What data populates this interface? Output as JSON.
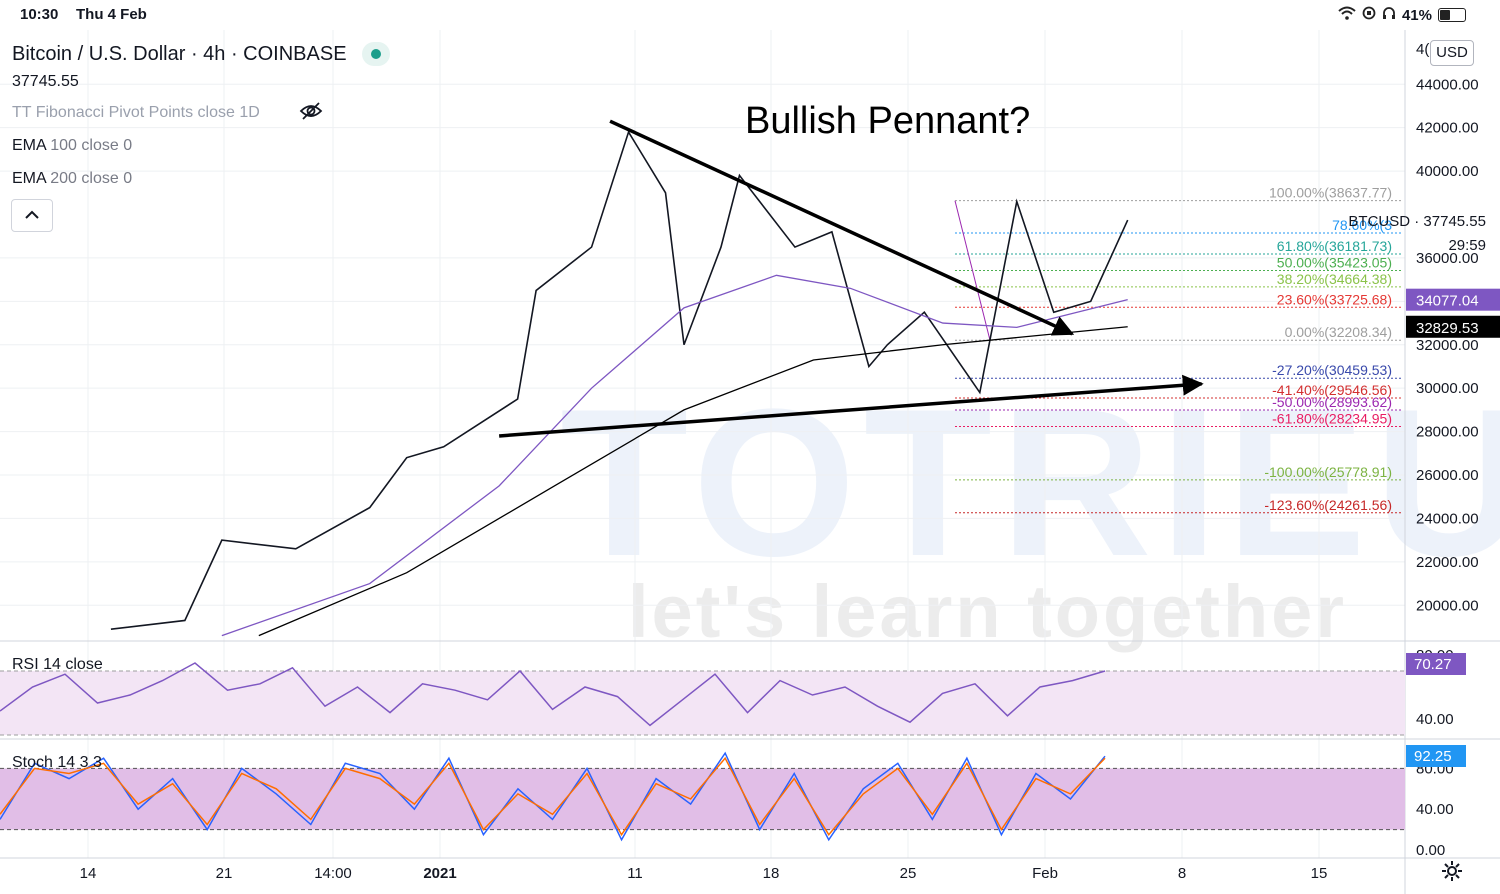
{
  "status_bar": {
    "time": "10:30",
    "date": "Thu 4 Feb",
    "battery": "41%",
    "battery_level": 0.41
  },
  "header": {
    "symbol": "Bitcoin / U.S. Dollar · 4h · COINBASE",
    "last_price": "37745.55",
    "indicator_fib": "TT Fibonacci Pivot Points close 1D",
    "ema100_name": "EMA",
    "ema100_params": "100 close 0",
    "ema200_name": "EMA",
    "ema200_params": "200 close 0"
  },
  "currency_button": "USD",
  "annotation": "Bullish Pennant?",
  "price_scale": {
    "tick_labels": [
      "44000.00",
      "42000.00",
      "40000.00",
      "36000.00",
      "34000.00",
      "32000.00",
      "30000.00",
      "28000.00",
      "26000.00",
      "24000.00",
      "22000.00",
      "20000.00"
    ],
    "tick_values": [
      44000,
      42000,
      40000,
      36000,
      34000,
      32000,
      30000,
      28000,
      26000,
      24000,
      22000,
      20000
    ],
    "top_partial": "4(",
    "badges": [
      {
        "label": "34077.04",
        "value": 34077.04,
        "bg": "#7e57c2",
        "fg": "#ffffff"
      },
      {
        "label": "32829.53",
        "value": 32829.53,
        "bg": "#000000",
        "fg": "#ffffff"
      }
    ],
    "last_label": "BTCUSD  ·  37745.55",
    "countdown": "29:59"
  },
  "fib_levels": [
    {
      "label": "100.00%(38637.77)",
      "price": 38637.77,
      "color": "#9e9e9e"
    },
    {
      "label": "78.60%(3",
      "price": 37150,
      "color": "#2196f3"
    },
    {
      "label": "61.80%(36181.73)",
      "price": 36181.73,
      "color": "#26a69a"
    },
    {
      "label": "50.00%(35423.05)",
      "price": 35423.05,
      "color": "#4caf50"
    },
    {
      "label": "38.20%(34664.38)",
      "price": 34664.38,
      "color": "#8bc34a"
    },
    {
      "label": "23.60%(33725.68)",
      "price": 33725.68,
      "color": "#e53935"
    },
    {
      "label": "0.00%(32208.34)",
      "price": 32208.34,
      "color": "#9e9e9e"
    },
    {
      "label": "-27.20%(30459.53)",
      "price": 30459.53,
      "color": "#3949ab"
    },
    {
      "label": "-41.40%(29546.56)",
      "price": 29546.56,
      "color": "#d32f2f"
    },
    {
      "label": "-50.00%(28993.62)",
      "price": 28993.62,
      "color": "#9c27b0"
    },
    {
      "label": "-61.80%(28234.95)",
      "price": 28234.95,
      "color": "#e91e63"
    },
    {
      "label": "-100.00%(25778.91)",
      "price": 25778.91,
      "color": "#7cb342"
    },
    {
      "label": "-123.60%(24261.56)",
      "price": 24261.56,
      "color": "#c62828"
    }
  ],
  "chart_data": [
    {
      "type": "line",
      "title": "Bitcoin / U.S. Dollar · 4h · COINBASE",
      "x_tick_labels": [
        "14",
        "21",
        "14:00",
        "2021",
        "11",
        "18",
        "25",
        "Feb",
        "8",
        "15"
      ],
      "ylim": [
        18400,
        46500
      ],
      "series": [
        {
          "name": "BTCUSD",
          "color": "#131722",
          "x": [
            "2020-12-11",
            "2020-12-15",
            "2020-12-17",
            "2020-12-21",
            "2020-12-25",
            "2020-12-27",
            "2020-12-29",
            "2021-01-02",
            "2021-01-03",
            "2021-01-06",
            "2021-01-08",
            "2021-01-10",
            "2021-01-11",
            "2021-01-13",
            "2021-01-14",
            "2021-01-17",
            "2021-01-19",
            "2021-01-21",
            "2021-01-22",
            "2021-01-24",
            "2021-01-27",
            "2021-01-29",
            "2021-01-31",
            "2021-02-02",
            "2021-02-04"
          ],
          "values": [
            18900,
            19300,
            23000,
            22600,
            24500,
            26800,
            27300,
            29500,
            34500,
            36500,
            41800,
            39000,
            32000,
            36500,
            39800,
            36500,
            37200,
            31000,
            32000,
            33500,
            29800,
            38600,
            33500,
            34000,
            37745
          ]
        },
        {
          "name": "EMA 100",
          "color": "#7e57c2",
          "x": [
            "2020-12-17",
            "2020-12-25",
            "2021-01-01",
            "2021-01-06",
            "2021-01-11",
            "2021-01-16",
            "2021-01-20",
            "2021-01-25",
            "2021-01-29",
            "2021-02-04"
          ],
          "values": [
            18600,
            21000,
            25500,
            30000,
            33700,
            35200,
            34600,
            33000,
            32800,
            34077
          ]
        },
        {
          "name": "EMA 200",
          "color": "#000000",
          "x": [
            "2020-12-19",
            "2020-12-27",
            "2021-01-04",
            "2021-01-11",
            "2021-01-18",
            "2021-01-25",
            "2021-02-04"
          ],
          "values": [
            18600,
            21500,
            25500,
            29000,
            31300,
            32000,
            32830
          ]
        }
      ],
      "trendlines": [
        {
          "from": {
            "x": "2021-01-07",
            "y": 42300
          },
          "to": {
            "x": "2021-02-01",
            "y": 32500
          },
          "arrow": true
        },
        {
          "from": {
            "x": "2021-01-01",
            "y": 27800
          },
          "to": {
            "x": "2021-02-08",
            "y": 30200
          },
          "arrow": true
        }
      ]
    },
    {
      "type": "line",
      "title": "RSI 14 close",
      "ylim": [
        30,
        85
      ],
      "tick_labels": [
        "80.00",
        "40.00"
      ],
      "tick_values": [
        80,
        40
      ],
      "band": [
        30,
        70
      ],
      "last_label": "70.27",
      "series": [
        {
          "name": "RSI",
          "color": "#7e57c2",
          "values": [
            45,
            60,
            68,
            50,
            55,
            64,
            75,
            58,
            62,
            72,
            48,
            60,
            44,
            62,
            58,
            52,
            70,
            46,
            60,
            54,
            36,
            52,
            68,
            44,
            64,
            55,
            60,
            48,
            38,
            56,
            62,
            42,
            60,
            64,
            70
          ]
        }
      ]
    },
    {
      "type": "line",
      "title": "Stoch 14 3 3",
      "ylim": [
        0,
        100
      ],
      "tick_labels": [
        "80.00",
        "40.00",
        "0.00"
      ],
      "tick_values": [
        80,
        40,
        0
      ],
      "band": [
        20,
        80
      ],
      "last_label": "92.25",
      "series": [
        {
          "name": "%K",
          "color": "#2962ff",
          "values": [
            30,
            85,
            70,
            90,
            40,
            70,
            20,
            80,
            55,
            25,
            85,
            75,
            40,
            90,
            15,
            60,
            30,
            80,
            10,
            70,
            45,
            95,
            20,
            75,
            10,
            60,
            85,
            30,
            90,
            15,
            75,
            50,
            92
          ]
        },
        {
          "name": "%D",
          "color": "#ff6d00",
          "values": [
            35,
            80,
            75,
            85,
            45,
            65,
            25,
            75,
            60,
            30,
            80,
            70,
            45,
            85,
            20,
            55,
            35,
            75,
            15,
            65,
            50,
            90,
            25,
            70,
            15,
            55,
            80,
            35,
            85,
            20,
            70,
            55,
            90
          ]
        }
      ]
    }
  ],
  "colors": {
    "up": "#131722",
    "ema100": "#7e57c2",
    "ema200": "#000000",
    "rsi_band": "#f3e5f5",
    "stoch_band": "#e1bee7",
    "grid": "#eef0f3"
  }
}
